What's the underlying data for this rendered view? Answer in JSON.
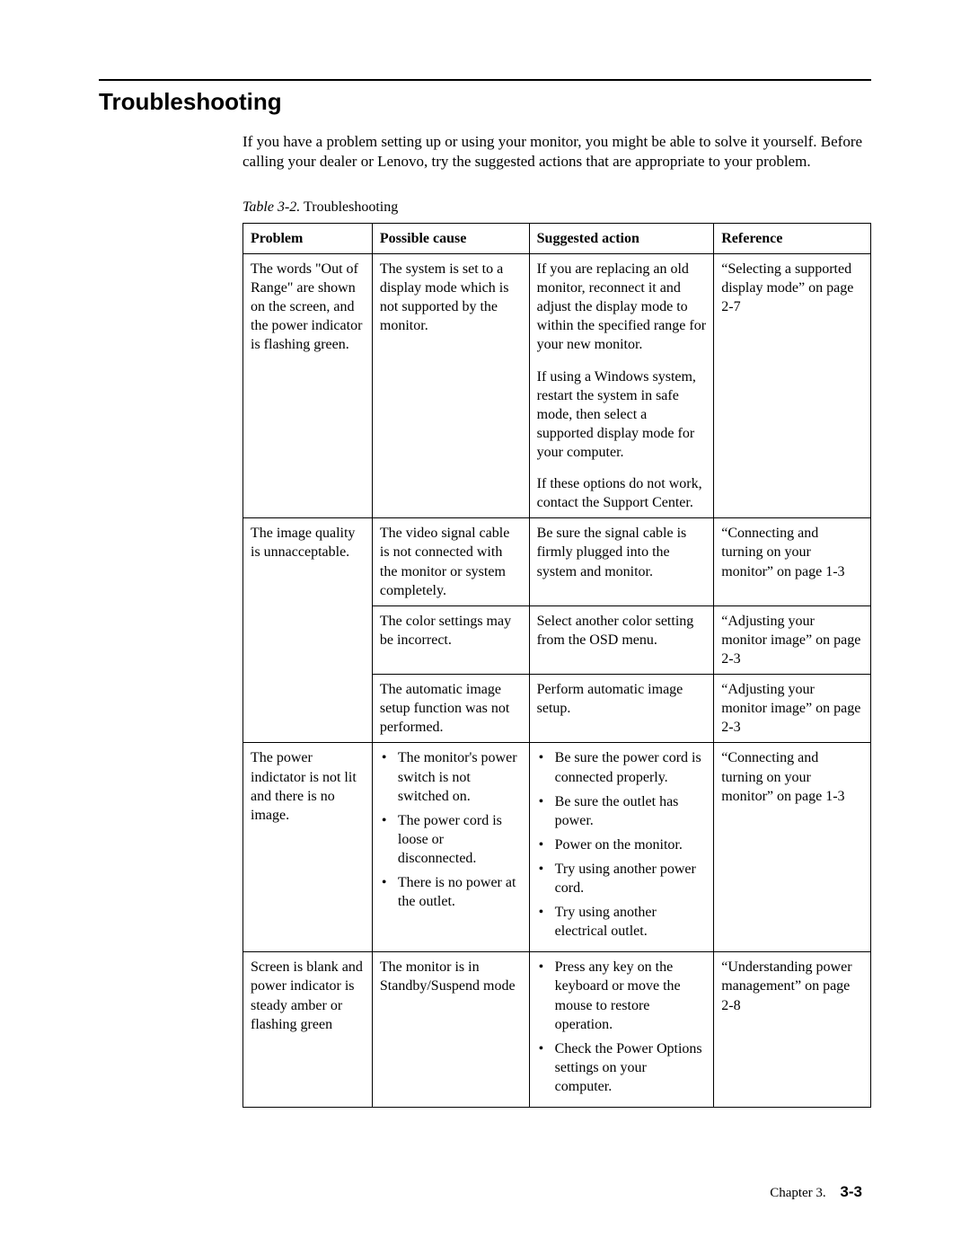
{
  "heading": "Troubleshooting",
  "intro": "If you have a problem setting up or using your monitor, you might be able to solve it yourself. Before calling your dealer or Lenovo, try the suggested actions that are appropriate to your problem.",
  "table_caption_prefix": "Table 3-2.",
  "table_caption_rest": " Troubleshooting",
  "columns": {
    "problem": "Problem",
    "cause": "Possible cause",
    "action": "Suggested action",
    "reference": "Reference"
  },
  "rows": {
    "r1": {
      "problem": "The words \"Out of Range\" are shown on the screen, and the power indicator is flashing green.",
      "cause": "The system is set to a display mode which is not supported by the monitor.",
      "action_p1": "If you are replacing an old monitor, reconnect it and adjust the display mode to within the specified range for your new monitor.",
      "action_p2": "If using a Windows system, restart the system in safe mode, then select a supported display mode for your computer.",
      "action_p3": "If these options do not work, contact the Support Center.",
      "reference": "“Selecting a supported display mode” on page 2-7"
    },
    "r2": {
      "problem": "The image quality is unnacceptable.",
      "cause_a": "The video signal cable is not connected with the monitor or system completely.",
      "action_a": "Be sure the signal cable is firmly plugged into the system and monitor.",
      "reference_a": "“Connecting and turning on your monitor” on page 1-3",
      "cause_b": "The color settings may be incorrect.",
      "action_b": "Select another color setting from the OSD menu.",
      "reference_b": "“Adjusting your monitor image” on page 2-3",
      "cause_c": "The automatic image setup function was not performed.",
      "action_c": "Perform automatic image setup.",
      "reference_c": "“Adjusting your monitor image” on page 2-3"
    },
    "r3": {
      "problem": "The power indictator is not lit and there is no image.",
      "cause_b1": "The monitor's power switch is not switched on.",
      "cause_b2": "The power cord is loose or disconnected.",
      "cause_b3": "There is no power at the outlet.",
      "action_b1": "Be sure the power cord is connected properly.",
      "action_b2": "Be sure the outlet has power.",
      "action_b3": "Power on the monitor.",
      "action_b4": "Try using another power cord.",
      "action_b5": "Try using another electrical outlet.",
      "reference": "“Connecting and turning on your monitor” on page 1-3"
    },
    "r4": {
      "problem": "Screen is blank and power indicator is steady amber or flashing green",
      "cause": "The monitor is in Standby/Suspend mode",
      "action_b1": "Press any key on the keyboard or move the mouse to restore operation.",
      "action_b2": "Check the Power Options settings on your computer.",
      "reference": "“Understanding power management” on page 2-8"
    }
  },
  "footer_chapter": "Chapter 3.",
  "footer_page": "3-3"
}
